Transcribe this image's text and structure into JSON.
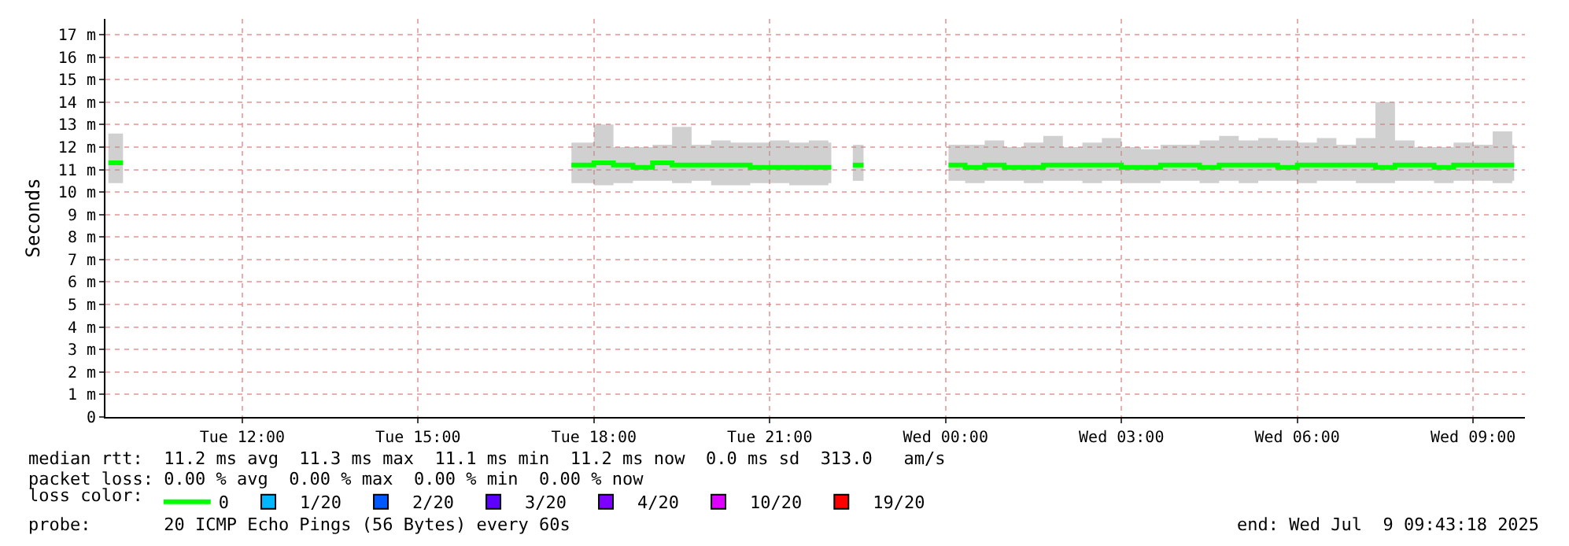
{
  "chart_data": {
    "type": "step",
    "ylabel": "Seconds",
    "legend_title": "loss color:",
    "legend": "bottom left",
    "grid": true,
    "marker": "none",
    "xlim": [
      "2025-07-08T09:40",
      "2025-07-09T09:53"
    ],
    "xticks": [
      {
        "value": "2025-07-08T12:00",
        "label": "Tue 12:00"
      },
      {
        "value": "2025-07-08T15:00",
        "label": "Tue 15:00"
      },
      {
        "value": "2025-07-08T18:00",
        "label": "Tue 18:00"
      },
      {
        "value": "2025-07-08T21:00",
        "label": "Tue 21:00"
      },
      {
        "value": "2025-07-09T00:00",
        "label": "Wed 00:00"
      },
      {
        "value": "2025-07-09T03:00",
        "label": "Wed 03:00"
      },
      {
        "value": "2025-07-09T06:00",
        "label": "Wed 06:00"
      },
      {
        "value": "2025-07-09T09:00",
        "label": "Wed 09:00"
      }
    ],
    "ylim": [
      0,
      17.7
    ],
    "yticks": [
      0,
      {
        "value": 1,
        "label": "1 m"
      },
      {
        "value": 2,
        "label": "2 m"
      },
      {
        "value": 3,
        "label": "3 m"
      },
      {
        "value": 4,
        "label": "4 m"
      },
      {
        "value": 5,
        "label": "5 m"
      },
      {
        "value": 6,
        "label": "6 m"
      },
      {
        "value": 7,
        "label": "7 m"
      },
      {
        "value": 8,
        "label": "8 m"
      },
      {
        "value": 9,
        "label": "9 m"
      },
      {
        "value": 10,
        "label": "10 m"
      },
      {
        "value": 11,
        "label": "11 m"
      },
      {
        "value": 12,
        "label": "12 m"
      },
      {
        "value": 13,
        "label": "13 m"
      },
      {
        "value": 14,
        "label": "14 m"
      },
      {
        "value": 15,
        "label": "15 m"
      },
      {
        "value": 16,
        "label": "16 m"
      },
      {
        "value": 17,
        "label": "17 m"
      }
    ],
    "x": [
      "2025-07-08T09:43",
      "2025-07-08T09:58",
      "2025-07-08T10:05",
      "2025-07-08T17:37",
      "2025-07-08T18:00",
      "2025-07-08T18:20",
      "2025-07-08T18:40",
      "2025-07-08T19:00",
      "2025-07-08T19:20",
      "2025-07-08T19:40",
      "2025-07-08T20:00",
      "2025-07-08T20:20",
      "2025-07-08T20:40",
      "2025-07-08T21:00",
      "2025-07-08T21:20",
      "2025-07-08T21:40",
      "2025-07-08T22:00",
      "2025-07-08T22:03",
      "2025-07-08T22:10",
      "2025-07-08T22:25",
      "2025-07-08T22:36",
      "2025-07-08T22:40",
      "2025-07-09T00:03",
      "2025-07-09T00:20",
      "2025-07-09T00:40",
      "2025-07-09T01:00",
      "2025-07-09T01:20",
      "2025-07-09T01:40",
      "2025-07-09T02:00",
      "2025-07-09T02:20",
      "2025-07-09T02:40",
      "2025-07-09T03:00",
      "2025-07-09T03:20",
      "2025-07-09T03:40",
      "2025-07-09T04:00",
      "2025-07-09T04:20",
      "2025-07-09T04:40",
      "2025-07-09T05:00",
      "2025-07-09T05:20",
      "2025-07-09T05:40",
      "2025-07-09T06:00",
      "2025-07-09T06:20",
      "2025-07-09T06:40",
      "2025-07-09T07:00",
      "2025-07-09T07:20",
      "2025-07-09T07:40",
      "2025-07-09T08:00",
      "2025-07-09T08:20",
      "2025-07-09T08:40",
      "2025-07-09T09:00",
      "2025-07-09T09:20",
      "2025-07-09T09:40",
      "2025-07-09T09:42"
    ],
    "series": [
      {
        "name": "0",
        "color": "#00ff00",
        "values": [
          11.3,
          11.3,
          null,
          11.2,
          11.3,
          11.2,
          11.1,
          11.3,
          11.2,
          11.2,
          11.2,
          11.2,
          11.1,
          11.1,
          11.1,
          11.1,
          11.1,
          11.1,
          null,
          11.2,
          11.2,
          null,
          11.2,
          11.1,
          11.2,
          11.1,
          11.1,
          11.2,
          11.2,
          11.2,
          11.2,
          11.1,
          11.1,
          11.2,
          11.2,
          11.1,
          11.2,
          11.2,
          11.2,
          11.1,
          11.2,
          11.2,
          11.2,
          11.2,
          11.1,
          11.2,
          11.2,
          11.1,
          11.2,
          11.2,
          11.2,
          11.2,
          11.2
        ],
        "lower": [
          10.4,
          10.4,
          null,
          10.4,
          10.3,
          10.4,
          10.5,
          10.5,
          10.4,
          10.5,
          10.3,
          10.3,
          10.4,
          10.4,
          10.3,
          10.3,
          10.4,
          10.4,
          null,
          10.5,
          10.5,
          null,
          10.5,
          10.4,
          10.5,
          10.5,
          10.4,
          10.5,
          10.5,
          10.4,
          10.5,
          10.4,
          10.4,
          10.5,
          10.5,
          10.4,
          10.5,
          10.4,
          10.5,
          10.5,
          10.4,
          10.5,
          10.5,
          10.4,
          10.4,
          10.5,
          10.5,
          10.4,
          10.5,
          10.5,
          10.4,
          10.5,
          10.5
        ],
        "upper": [
          12.6,
          12.6,
          null,
          12.2,
          13.0,
          12.0,
          12.0,
          12.1,
          12.9,
          12.1,
          12.3,
          12.2,
          12.2,
          12.3,
          12.2,
          12.3,
          12.2,
          12.2,
          null,
          12.1,
          12.1,
          null,
          12.1,
          12.1,
          12.3,
          12.0,
          12.2,
          12.5,
          12.0,
          12.2,
          12.4,
          12.0,
          11.9,
          12.1,
          12.1,
          12.3,
          12.5,
          12.3,
          12.4,
          12.3,
          12.2,
          12.4,
          12.1,
          12.4,
          14.0,
          12.3,
          12.0,
          12.0,
          12.2,
          12.1,
          12.7,
          12.1,
          12.1
        ]
      },
      {
        "name": "1/20",
        "color": "#00b8ff",
        "values": [
          null,
          null,
          null,
          null,
          null,
          null,
          null,
          null,
          null,
          null,
          null,
          null,
          null,
          null,
          null,
          null,
          null,
          null,
          null,
          null,
          null,
          null,
          null,
          null,
          null,
          null,
          null,
          null,
          null,
          null,
          null,
          null,
          null,
          null,
          null,
          null,
          null,
          null,
          null,
          null,
          null,
          null,
          null,
          null,
          null,
          null,
          null,
          null,
          null,
          null,
          null,
          null,
          null
        ]
      },
      {
        "name": "2/20",
        "color": "#0059ff",
        "values": [
          null,
          null,
          null,
          null,
          null,
          null,
          null,
          null,
          null,
          null,
          null,
          null,
          null,
          null,
          null,
          null,
          null,
          null,
          null,
          null,
          null,
          null,
          null,
          null,
          null,
          null,
          null,
          null,
          null,
          null,
          null,
          null,
          null,
          null,
          null,
          null,
          null,
          null,
          null,
          null,
          null,
          null,
          null,
          null,
          null,
          null,
          null,
          null,
          null,
          null,
          null,
          null,
          null
        ]
      },
      {
        "name": "3/20",
        "color": "#5e00ff",
        "values": [
          null,
          null,
          null,
          null,
          null,
          null,
          null,
          null,
          null,
          null,
          null,
          null,
          null,
          null,
          null,
          null,
          null,
          null,
          null,
          null,
          null,
          null,
          null,
          null,
          null,
          null,
          null,
          null,
          null,
          null,
          null,
          null,
          null,
          null,
          null,
          null,
          null,
          null,
          null,
          null,
          null,
          null,
          null,
          null,
          null,
          null,
          null,
          null,
          null,
          null,
          null,
          null,
          null
        ]
      },
      {
        "name": "4/20",
        "color": "#7e00ff",
        "values": [
          null,
          null,
          null,
          null,
          null,
          null,
          null,
          null,
          null,
          null,
          null,
          null,
          null,
          null,
          null,
          null,
          null,
          null,
          null,
          null,
          null,
          null,
          null,
          null,
          null,
          null,
          null,
          null,
          null,
          null,
          null,
          null,
          null,
          null,
          null,
          null,
          null,
          null,
          null,
          null,
          null,
          null,
          null,
          null,
          null,
          null,
          null,
          null,
          null,
          null,
          null,
          null,
          null
        ]
      },
      {
        "name": "10/20",
        "color": "#dd00ff",
        "values": [
          null,
          null,
          null,
          null,
          null,
          null,
          null,
          null,
          null,
          null,
          null,
          null,
          null,
          null,
          null,
          null,
          null,
          null,
          null,
          null,
          null,
          null,
          null,
          null,
          null,
          null,
          null,
          null,
          null,
          null,
          null,
          null,
          null,
          null,
          null,
          null,
          null,
          null,
          null,
          null,
          null,
          null,
          null,
          null,
          null,
          null,
          null,
          null,
          null,
          null,
          null,
          null,
          null
        ]
      },
      {
        "name": "19/20",
        "color": "#ff0000",
        "values": [
          null,
          null,
          null,
          null,
          null,
          null,
          null,
          null,
          null,
          null,
          null,
          null,
          null,
          null,
          null,
          null,
          null,
          null,
          null,
          null,
          null,
          null,
          null,
          null,
          null,
          null,
          null,
          null,
          null,
          null,
          null,
          null,
          null,
          null,
          null,
          null,
          null,
          null,
          null,
          null,
          null,
          null,
          null,
          null,
          null,
          null,
          null,
          null,
          null,
          null,
          null,
          null,
          null
        ]
      }
    ],
    "annotations": [
      "median rtt:  11.2 ms avg  11.3 ms max  11.1 ms min  11.2 ms now  0.0 ms sd  313.0   am/s",
      "packet loss: 0.00 % avg  0.00 % max  0.00 % min  0.00 % now",
      "probe:       20 ICMP Echo Pings (56 Bytes) every 60s",
      "end: Wed Jul  9 09:43:18 2025"
    ]
  }
}
